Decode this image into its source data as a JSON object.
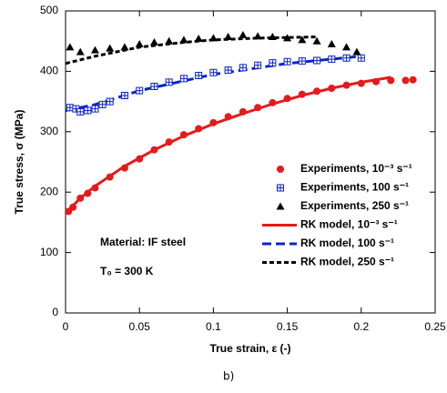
{
  "chart_data": {
    "type": "scatter",
    "xlabel": "True strain,  ε (-)",
    "ylabel": "True stress,  σ (MPa)",
    "xlim": [
      0,
      0.25
    ],
    "xticks": [
      0,
      0.05,
      0.1,
      0.15,
      0.2,
      0.25
    ],
    "ylim": [
      0,
      500
    ],
    "yticks": [
      0,
      100,
      200,
      300,
      400,
      500
    ],
    "legend": "right",
    "annotations": [
      "Material: IF steel",
      "T₀ = 300 K",
      "b)"
    ],
    "series": [
      {
        "name": "Experiments, 10⁻³ s⁻¹",
        "color": "#e41a1c",
        "mode": "markers",
        "marker": "circle",
        "x": [
          0.002,
          0.005,
          0.01,
          0.015,
          0.02,
          0.03,
          0.04,
          0.05,
          0.06,
          0.07,
          0.08,
          0.09,
          0.1,
          0.11,
          0.12,
          0.13,
          0.14,
          0.15,
          0.16,
          0.17,
          0.18,
          0.19,
          0.2,
          0.21,
          0.22,
          0.23,
          0.235
        ],
        "values": [
          168,
          175,
          190,
          198,
          207,
          225,
          240,
          255,
          270,
          283,
          295,
          305,
          315,
          325,
          333,
          340,
          348,
          355,
          362,
          367,
          372,
          377,
          380,
          383,
          385,
          385,
          386
        ]
      },
      {
        "name": "Experiments, 100 s⁻¹",
        "color": "#0b24c8",
        "mode": "markers",
        "marker": "square",
        "x": [
          0.003,
          0.007,
          0.01,
          0.015,
          0.02,
          0.025,
          0.03,
          0.04,
          0.05,
          0.06,
          0.07,
          0.08,
          0.09,
          0.1,
          0.11,
          0.12,
          0.13,
          0.14,
          0.15,
          0.16,
          0.17,
          0.18,
          0.19,
          0.2
        ],
        "values": [
          340,
          338,
          333,
          335,
          338,
          345,
          350,
          360,
          368,
          375,
          382,
          388,
          393,
          398,
          402,
          406,
          410,
          414,
          416,
          417,
          418,
          420,
          422,
          422
        ]
      },
      {
        "name": "Experiments, 250 s⁻¹",
        "color": "#000000",
        "mode": "markers",
        "marker": "triangle",
        "x": [
          0.003,
          0.01,
          0.02,
          0.03,
          0.04,
          0.05,
          0.06,
          0.07,
          0.08,
          0.09,
          0.1,
          0.11,
          0.12,
          0.13,
          0.14,
          0.15,
          0.16,
          0.17,
          0.18,
          0.19,
          0.197
        ],
        "values": [
          440,
          432,
          435,
          438,
          440,
          445,
          448,
          450,
          452,
          454,
          455,
          457,
          460,
          458,
          457,
          455,
          452,
          450,
          445,
          440,
          432
        ]
      },
      {
        "name": "RK model, 10⁻³ s⁻¹",
        "color": "#e41a1c",
        "mode": "line",
        "dash": "none",
        "x": [
          0,
          0.01,
          0.02,
          0.04,
          0.06,
          0.08,
          0.1,
          0.12,
          0.14,
          0.16,
          0.18,
          0.2,
          0.22
        ],
        "values": [
          165,
          190,
          210,
          243,
          270,
          293,
          313,
          330,
          346,
          360,
          372,
          382,
          390
        ]
      },
      {
        "name": "RK model, 100 s⁻¹",
        "color": "#0b24c8",
        "mode": "line",
        "dash": "10,5",
        "x": [
          0,
          0.02,
          0.05,
          0.1,
          0.15,
          0.2
        ],
        "values": [
          335,
          345,
          368,
          395,
          413,
          425
        ]
      },
      {
        "name": "RK model, 250 s⁻¹",
        "color": "#000000",
        "mode": "line",
        "dash": "5,3",
        "x": [
          0,
          0.02,
          0.05,
          0.08,
          0.1,
          0.13,
          0.17
        ],
        "values": [
          413,
          425,
          440,
          448,
          452,
          455,
          457
        ]
      }
    ]
  }
}
